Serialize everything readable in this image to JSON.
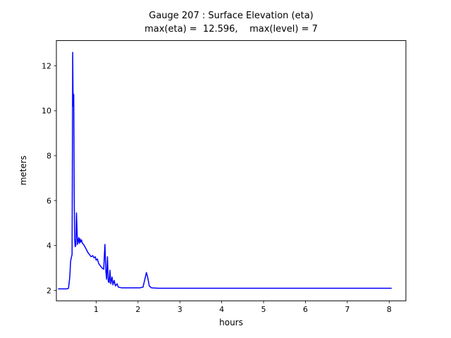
{
  "figure": {
    "background": "#ffffff"
  },
  "chart_data": {
    "type": "line",
    "title": "Gauge 207 : Surface Elevation (eta)",
    "subtitle": "max(eta) =  12.596,    max(level) = 7",
    "xlabel": "hours",
    "ylabel": "meters",
    "xlim": [
      0.05,
      8.4
    ],
    "ylim": [
      1.54,
      13.12
    ],
    "xticks": [
      1,
      2,
      3,
      4,
      5,
      6,
      7,
      8
    ],
    "yticks": [
      2,
      4,
      6,
      8,
      10,
      12
    ],
    "grid": false,
    "legend": "none",
    "max_eta": 12.596,
    "max_level": 7,
    "series": [
      {
        "name": "eta",
        "color": "#0000ff",
        "points": [
          [
            0.1,
            2.07
          ],
          [
            0.3,
            2.07
          ],
          [
            0.34,
            2.1
          ],
          [
            0.37,
            2.6
          ],
          [
            0.39,
            3.3
          ],
          [
            0.405,
            3.45
          ],
          [
            0.425,
            3.6
          ],
          [
            0.44,
            12.596
          ],
          [
            0.45,
            10.2
          ],
          [
            0.455,
            10.75
          ],
          [
            0.465,
            10.7
          ],
          [
            0.475,
            6.5
          ],
          [
            0.485,
            4.3
          ],
          [
            0.5,
            3.95
          ],
          [
            0.515,
            4.0
          ],
          [
            0.53,
            5.45
          ],
          [
            0.545,
            4.6
          ],
          [
            0.555,
            4.05
          ],
          [
            0.57,
            4.2
          ],
          [
            0.585,
            4.35
          ],
          [
            0.6,
            4.1
          ],
          [
            0.615,
            4.3
          ],
          [
            0.63,
            4.15
          ],
          [
            0.65,
            4.25
          ],
          [
            0.67,
            4.1
          ],
          [
            0.7,
            4.05
          ],
          [
            0.73,
            3.95
          ],
          [
            0.76,
            3.85
          ],
          [
            0.8,
            3.7
          ],
          [
            0.84,
            3.6
          ],
          [
            0.88,
            3.5
          ],
          [
            0.92,
            3.55
          ],
          [
            0.95,
            3.45
          ],
          [
            0.98,
            3.5
          ],
          [
            1.0,
            3.35
          ],
          [
            1.03,
            3.4
          ],
          [
            1.06,
            3.2
          ],
          [
            1.1,
            3.1
          ],
          [
            1.14,
            3.0
          ],
          [
            1.18,
            2.95
          ],
          [
            1.21,
            4.05
          ],
          [
            1.23,
            2.9
          ],
          [
            1.25,
            2.5
          ],
          [
            1.27,
            3.5
          ],
          [
            1.29,
            2.4
          ],
          [
            1.31,
            2.35
          ],
          [
            1.33,
            2.9
          ],
          [
            1.35,
            2.3
          ],
          [
            1.38,
            2.6
          ],
          [
            1.4,
            2.25
          ],
          [
            1.43,
            2.45
          ],
          [
            1.46,
            2.2
          ],
          [
            1.5,
            2.3
          ],
          [
            1.53,
            2.15
          ],
          [
            1.6,
            2.12
          ],
          [
            2.05,
            2.12
          ],
          [
            2.12,
            2.15
          ],
          [
            2.17,
            2.55
          ],
          [
            2.2,
            2.8
          ],
          [
            2.23,
            2.6
          ],
          [
            2.27,
            2.2
          ],
          [
            2.32,
            2.12
          ],
          [
            2.5,
            2.1
          ],
          [
            8.05,
            2.1
          ]
        ]
      }
    ]
  }
}
